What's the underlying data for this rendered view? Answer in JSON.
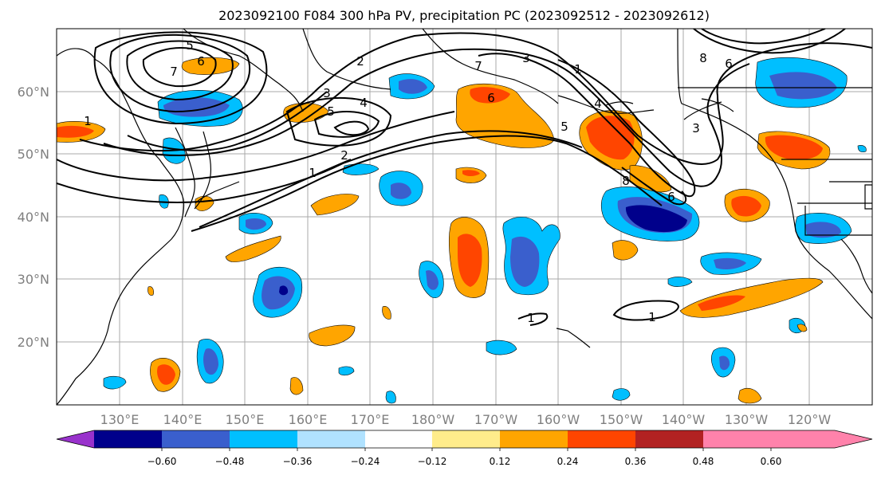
{
  "title": "2023092100 F084 300 hPa PV, precipitation PC (2023092512 - 2023092612)",
  "lat_labels": [
    "60°N",
    "50°N",
    "40°N",
    "30°N",
    "20°N"
  ],
  "lon_labels": [
    "130°E",
    "140°E",
    "150°E",
    "160°E",
    "170°E",
    "180°W",
    "170°W",
    "160°W",
    "150°W",
    "140°W",
    "130°W",
    "120°W"
  ],
  "colorbar": {
    "colors": [
      "#9932cc",
      "#00008b",
      "#3a5fcd",
      "#00bfff",
      "#b0e2ff",
      "#ffffff",
      "#ffec8b",
      "#ffa500",
      "#ff4500",
      "#b22222",
      "#ff82ab"
    ],
    "tick_labels": [
      "−0.60",
      "−0.48",
      "−0.36",
      "−0.24",
      "−0.12",
      "0.12",
      "0.24",
      "0.36",
      "0.48",
      "0.60"
    ]
  },
  "contour_labels": [
    {
      "text": "6"
    },
    {
      "text": "7"
    },
    {
      "text": "5"
    },
    {
      "text": "1"
    },
    {
      "text": "2"
    },
    {
      "text": "3"
    },
    {
      "text": "4"
    },
    {
      "text": "5"
    },
    {
      "text": "1"
    },
    {
      "text": "2"
    },
    {
      "text": "7"
    },
    {
      "text": "3"
    },
    {
      "text": "6"
    },
    {
      "text": "1"
    },
    {
      "text": "4"
    },
    {
      "text": "5"
    },
    {
      "text": "8"
    },
    {
      "text": "6"
    },
    {
      "text": "3"
    },
    {
      "text": "8"
    },
    {
      "text": "6"
    },
    {
      "text": "1"
    },
    {
      "text": "1"
    }
  ]
}
